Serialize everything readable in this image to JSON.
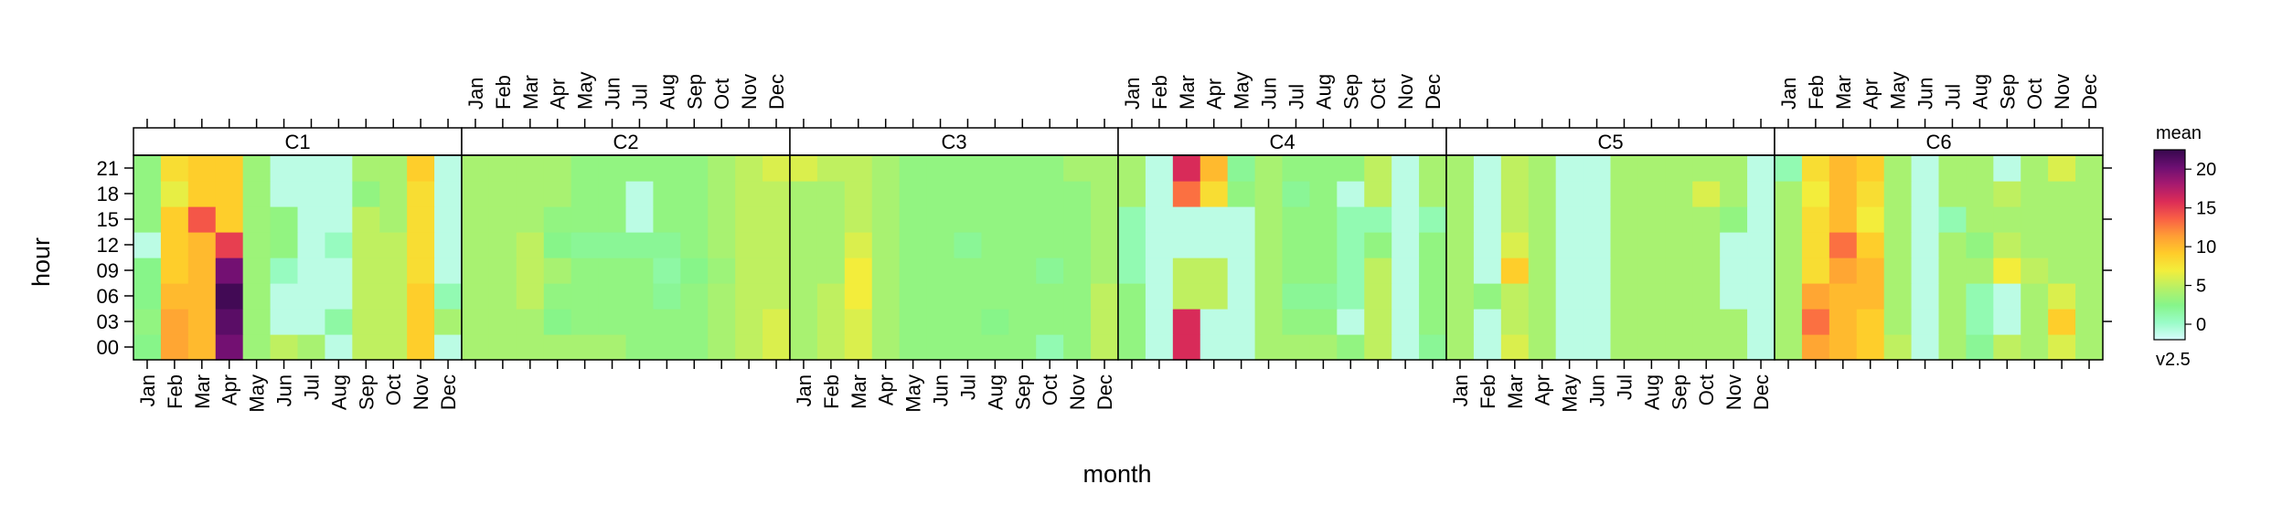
{
  "chart_data": {
    "type": "heatmap",
    "xlabel": "month",
    "ylabel": "hour",
    "months": [
      "Jan",
      "Feb",
      "Mar",
      "Apr",
      "May",
      "Jun",
      "Jul",
      "Aug",
      "Sep",
      "Oct",
      "Nov",
      "Dec"
    ],
    "hours": [
      "00",
      "03",
      "06",
      "09",
      "12",
      "15",
      "18",
      "21"
    ],
    "panels": [
      "C1",
      "C2",
      "C3",
      "C4",
      "C5",
      "C6"
    ],
    "legend": {
      "title": "mean",
      "subtitle": "v2.5",
      "ticks": [
        0,
        5,
        10,
        15,
        20
      ],
      "range": [
        -2,
        22.5
      ],
      "palette": [
        "#d7fcfc",
        "#99fcc7",
        "#86f58a",
        "#b7f066",
        "#f2ee3c",
        "#ffcc2a",
        "#ff9e35",
        "#f96045",
        "#dc2c57",
        "#a71a6f",
        "#6c0f72",
        "#36084d"
      ]
    },
    "data": {
      "C1": [
        [
          2.5,
          11,
          10,
          20,
          3.5,
          5,
          4,
          -1,
          5,
          5,
          9,
          -1
        ],
        [
          3,
          11,
          10,
          21,
          3.5,
          -1,
          -1,
          1.5,
          5,
          5,
          9,
          4
        ],
        [
          2.5,
          10,
          10,
          22,
          3.5,
          -1,
          -1,
          -1,
          5,
          5,
          9,
          1
        ],
        [
          2.5,
          9,
          10,
          20,
          3.5,
          0.5,
          -1,
          -1,
          5,
          5,
          8,
          -1
        ],
        [
          -1,
          9,
          10,
          15,
          3.5,
          3,
          -1,
          0.5,
          5,
          5,
          8,
          -1
        ],
        [
          3,
          9,
          14,
          9,
          3.5,
          3,
          -1,
          -1,
          5,
          4,
          8,
          -1
        ],
        [
          3,
          6.5,
          9,
          9,
          3.5,
          -1,
          -1,
          -1,
          3,
          4,
          8,
          -1
        ],
        [
          3,
          8,
          9,
          9,
          3.5,
          -1,
          -1,
          -1,
          4,
          4,
          9,
          -1
        ]
      ],
      "C2": [
        [
          4,
          4,
          4,
          4,
          4,
          4,
          3,
          3,
          3,
          4,
          5,
          6
        ],
        [
          4,
          4,
          4,
          2.5,
          3,
          3,
          3,
          3,
          3,
          4,
          5,
          6
        ],
        [
          4,
          4,
          5,
          3,
          3,
          3,
          3,
          2,
          3,
          4,
          5,
          5
        ],
        [
          4,
          4,
          5,
          4,
          3,
          3,
          3,
          1.5,
          2.5,
          3.5,
          5,
          5
        ],
        [
          4,
          4,
          5,
          2.5,
          2,
          2,
          2,
          2,
          3,
          4,
          5,
          5
        ],
        [
          4,
          4,
          4,
          3,
          3,
          3,
          -1,
          3,
          3,
          4,
          5,
          5
        ],
        [
          4,
          4,
          4,
          4,
          3,
          3,
          -1,
          3,
          3,
          4,
          5,
          5
        ],
        [
          4,
          4,
          4,
          4,
          3,
          3,
          3,
          3,
          3,
          4,
          5,
          6
        ]
      ],
      "C3": [
        [
          4,
          5,
          6,
          4,
          3,
          3,
          3,
          3,
          3,
          1,
          3,
          5
        ],
        [
          4,
          5,
          6,
          4,
          3,
          3,
          3,
          2.5,
          3,
          3,
          3,
          5
        ],
        [
          4,
          5,
          7,
          4,
          3,
          3,
          3,
          3,
          3,
          3,
          3,
          5
        ],
        [
          4,
          4,
          7,
          4,
          3,
          3,
          3,
          3,
          3,
          2,
          3,
          4
        ],
        [
          4,
          4,
          6,
          4,
          3,
          3,
          2,
          3,
          3,
          3,
          3,
          4
        ],
        [
          4,
          4,
          5,
          4,
          3,
          3,
          3,
          3,
          3,
          3,
          3,
          4
        ],
        [
          4,
          4,
          5,
          4,
          3,
          3,
          3,
          3,
          3,
          3,
          3,
          4
        ],
        [
          6,
          5,
          5,
          4,
          3,
          3,
          3,
          3,
          3,
          3,
          4,
          4
        ]
      ],
      "C4": [
        [
          3,
          -1,
          16,
          -1,
          -1,
          4,
          4,
          4,
          3,
          5,
          -1,
          2
        ],
        [
          3,
          -1,
          16,
          -1,
          -1,
          4,
          3,
          3,
          -1,
          5,
          -1,
          3
        ],
        [
          3,
          -1,
          5,
          5,
          -1,
          4,
          2,
          2,
          1,
          5,
          -1,
          3
        ],
        [
          1,
          -1,
          5,
          5,
          -1,
          4,
          3,
          3,
          1,
          5,
          -1,
          3
        ],
        [
          1,
          -1,
          -1,
          -1,
          -1,
          4,
          3,
          3,
          1,
          3,
          -1,
          3
        ],
        [
          1,
          -1,
          -1,
          -1,
          -1,
          4,
          3,
          3,
          1,
          1,
          -1,
          1
        ],
        [
          4,
          -1,
          13,
          8,
          3,
          4,
          2,
          3,
          -1,
          5,
          -1,
          4
        ],
        [
          4,
          -1,
          16,
          10,
          2,
          4,
          3,
          3,
          3,
          5,
          -1,
          4
        ]
      ],
      "C5": [
        [
          4,
          -1,
          6,
          4,
          -1,
          -1,
          4,
          4,
          4,
          4,
          4,
          -1
        ],
        [
          4,
          -1,
          5,
          4,
          -1,
          -1,
          4,
          4,
          4,
          4,
          4,
          -1
        ],
        [
          4,
          3,
          5,
          4,
          -1,
          -1,
          4,
          4,
          4,
          4,
          -1,
          -1
        ],
        [
          4,
          -1,
          9,
          4,
          -1,
          -1,
          4,
          4,
          4,
          4,
          -1,
          -1
        ],
        [
          4,
          -1,
          6,
          4,
          -1,
          -1,
          4,
          4,
          4,
          4,
          -1,
          -1
        ],
        [
          4,
          -1,
          5,
          4,
          -1,
          -1,
          4,
          4,
          4,
          4,
          3,
          -1
        ],
        [
          4,
          -1,
          5,
          4,
          -1,
          -1,
          4,
          4,
          4,
          6,
          4,
          -1
        ],
        [
          4,
          -1,
          5,
          4,
          -1,
          -1,
          4,
          4,
          4,
          4,
          4,
          -1
        ]
      ],
      "C6": [
        [
          4,
          11,
          10,
          9,
          5,
          -1,
          4,
          2,
          5,
          4,
          6,
          4
        ],
        [
          4,
          13,
          10,
          9,
          4,
          -1,
          4,
          1,
          -1,
          4,
          9,
          4
        ],
        [
          4,
          11,
          10,
          10,
          4,
          -1,
          4,
          1,
          -1,
          4,
          6,
          4
        ],
        [
          4,
          8,
          11,
          10,
          4,
          -1,
          4,
          4,
          7,
          5,
          4,
          4
        ],
        [
          4,
          8,
          13,
          9,
          4,
          -1,
          4,
          3,
          5,
          4,
          4,
          4
        ],
        [
          4,
          8,
          10,
          7,
          4,
          -1,
          1,
          4,
          4,
          4,
          4,
          4
        ],
        [
          4,
          7,
          10,
          8,
          4,
          -1,
          4,
          4,
          5,
          4,
          4,
          4
        ],
        [
          1,
          8,
          10,
          9,
          4,
          -1,
          4,
          4,
          -1,
          4,
          6,
          4
        ]
      ]
    }
  }
}
